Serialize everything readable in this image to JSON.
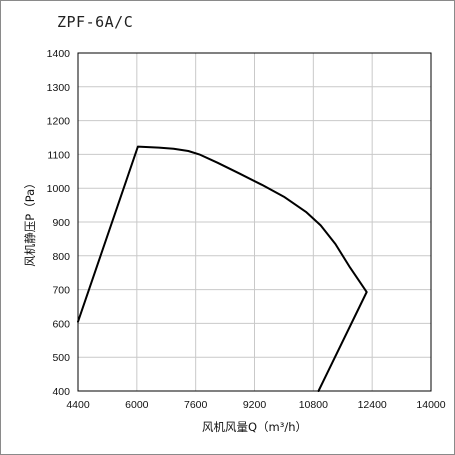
{
  "chart_data": {
    "type": "line",
    "title": "ZPF-6A/C",
    "xlabel": "风机风量Q（m³/h）",
    "ylabel": "风机静压P（Pa）",
    "xlim": [
      4400,
      14000
    ],
    "ylim": [
      400,
      1400
    ],
    "xticks": [
      4400,
      6000,
      7600,
      9200,
      10800,
      12400,
      14000
    ],
    "yticks": [
      400,
      500,
      600,
      700,
      800,
      900,
      1000,
      1100,
      1200,
      1300,
      1400
    ],
    "grid": true,
    "series": [
      {
        "color": "#000000",
        "x": [
          4400,
          6030,
          6600,
          7000,
          7400,
          7700,
          8200,
          8800,
          9400,
          10000,
          10600,
          11000,
          11400,
          11800,
          12250,
          10940
        ],
        "y": [
          605,
          1123,
          1120,
          1117,
          1110,
          1100,
          1075,
          1043,
          1010,
          975,
          930,
          890,
          835,
          765,
          693,
          400
        ]
      }
    ]
  }
}
